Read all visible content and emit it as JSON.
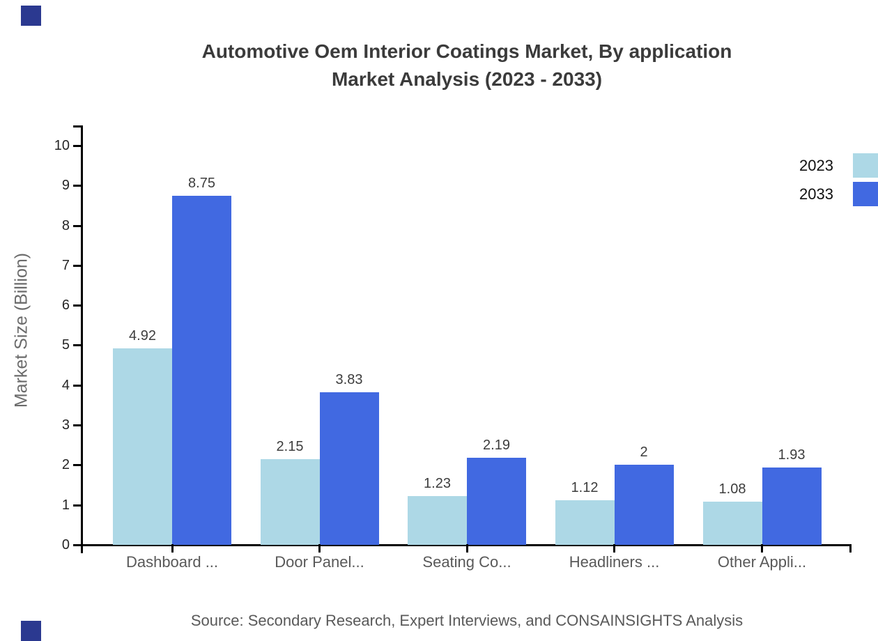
{
  "title": {
    "line1": "Automotive Oem Interior Coatings Market, By application",
    "line2": "Market Analysis (2023 - 2033)"
  },
  "y_axis_label": "Market Size (Billion)",
  "source_note": "Source: Secondary Research, Expert Interviews, and CONSAINSIGHTS Analysis",
  "colors": {
    "bar_2023": "#add8e6",
    "bar_2033": "#4169e1",
    "corner_mark": "#2b3990",
    "axis": "#000000",
    "title_text": "#3b3b3b",
    "tick_text": "#262626",
    "value_text": "#3d3d3d",
    "muted_text": "#595959",
    "ylabel_text": "#6b6b6b",
    "legend_text": "#111111"
  },
  "legend": {
    "position": "top-right",
    "entries": [
      {
        "label": "2023",
        "swatch_color": "#add8e6"
      },
      {
        "label": "2033",
        "swatch_color": "#4169e1"
      }
    ]
  },
  "chart_data": {
    "type": "bar",
    "title": "Automotive Oem Interior Coatings Market, By application Market Analysis (2023 - 2033)",
    "categories": [
      "Dashboard ...",
      "Door Panel...",
      "Seating Co...",
      "Headliners ...",
      "Other Appli..."
    ],
    "series": [
      {
        "name": "2023",
        "color": "#add8e6",
        "values": [
          4.92,
          2.15,
          1.23,
          1.12,
          1.08
        ],
        "value_labels": [
          "4.92",
          "2.15",
          "1.23",
          "1.12",
          "1.08"
        ]
      },
      {
        "name": "2033",
        "color": "#4169e1",
        "values": [
          8.75,
          3.83,
          2.19,
          2.0,
          1.93
        ],
        "value_labels": [
          "8.75",
          "3.83",
          "2.19",
          "2",
          "1.93"
        ]
      }
    ],
    "xlabel": "",
    "ylabel": "Market Size (Billion)",
    "ylim": [
      0,
      10
    ],
    "yticks": [
      0,
      1,
      2,
      3,
      4,
      5,
      6,
      7,
      8,
      9,
      10
    ],
    "grid": false,
    "legend_position": "top-right",
    "bar_value_labels": true
  }
}
